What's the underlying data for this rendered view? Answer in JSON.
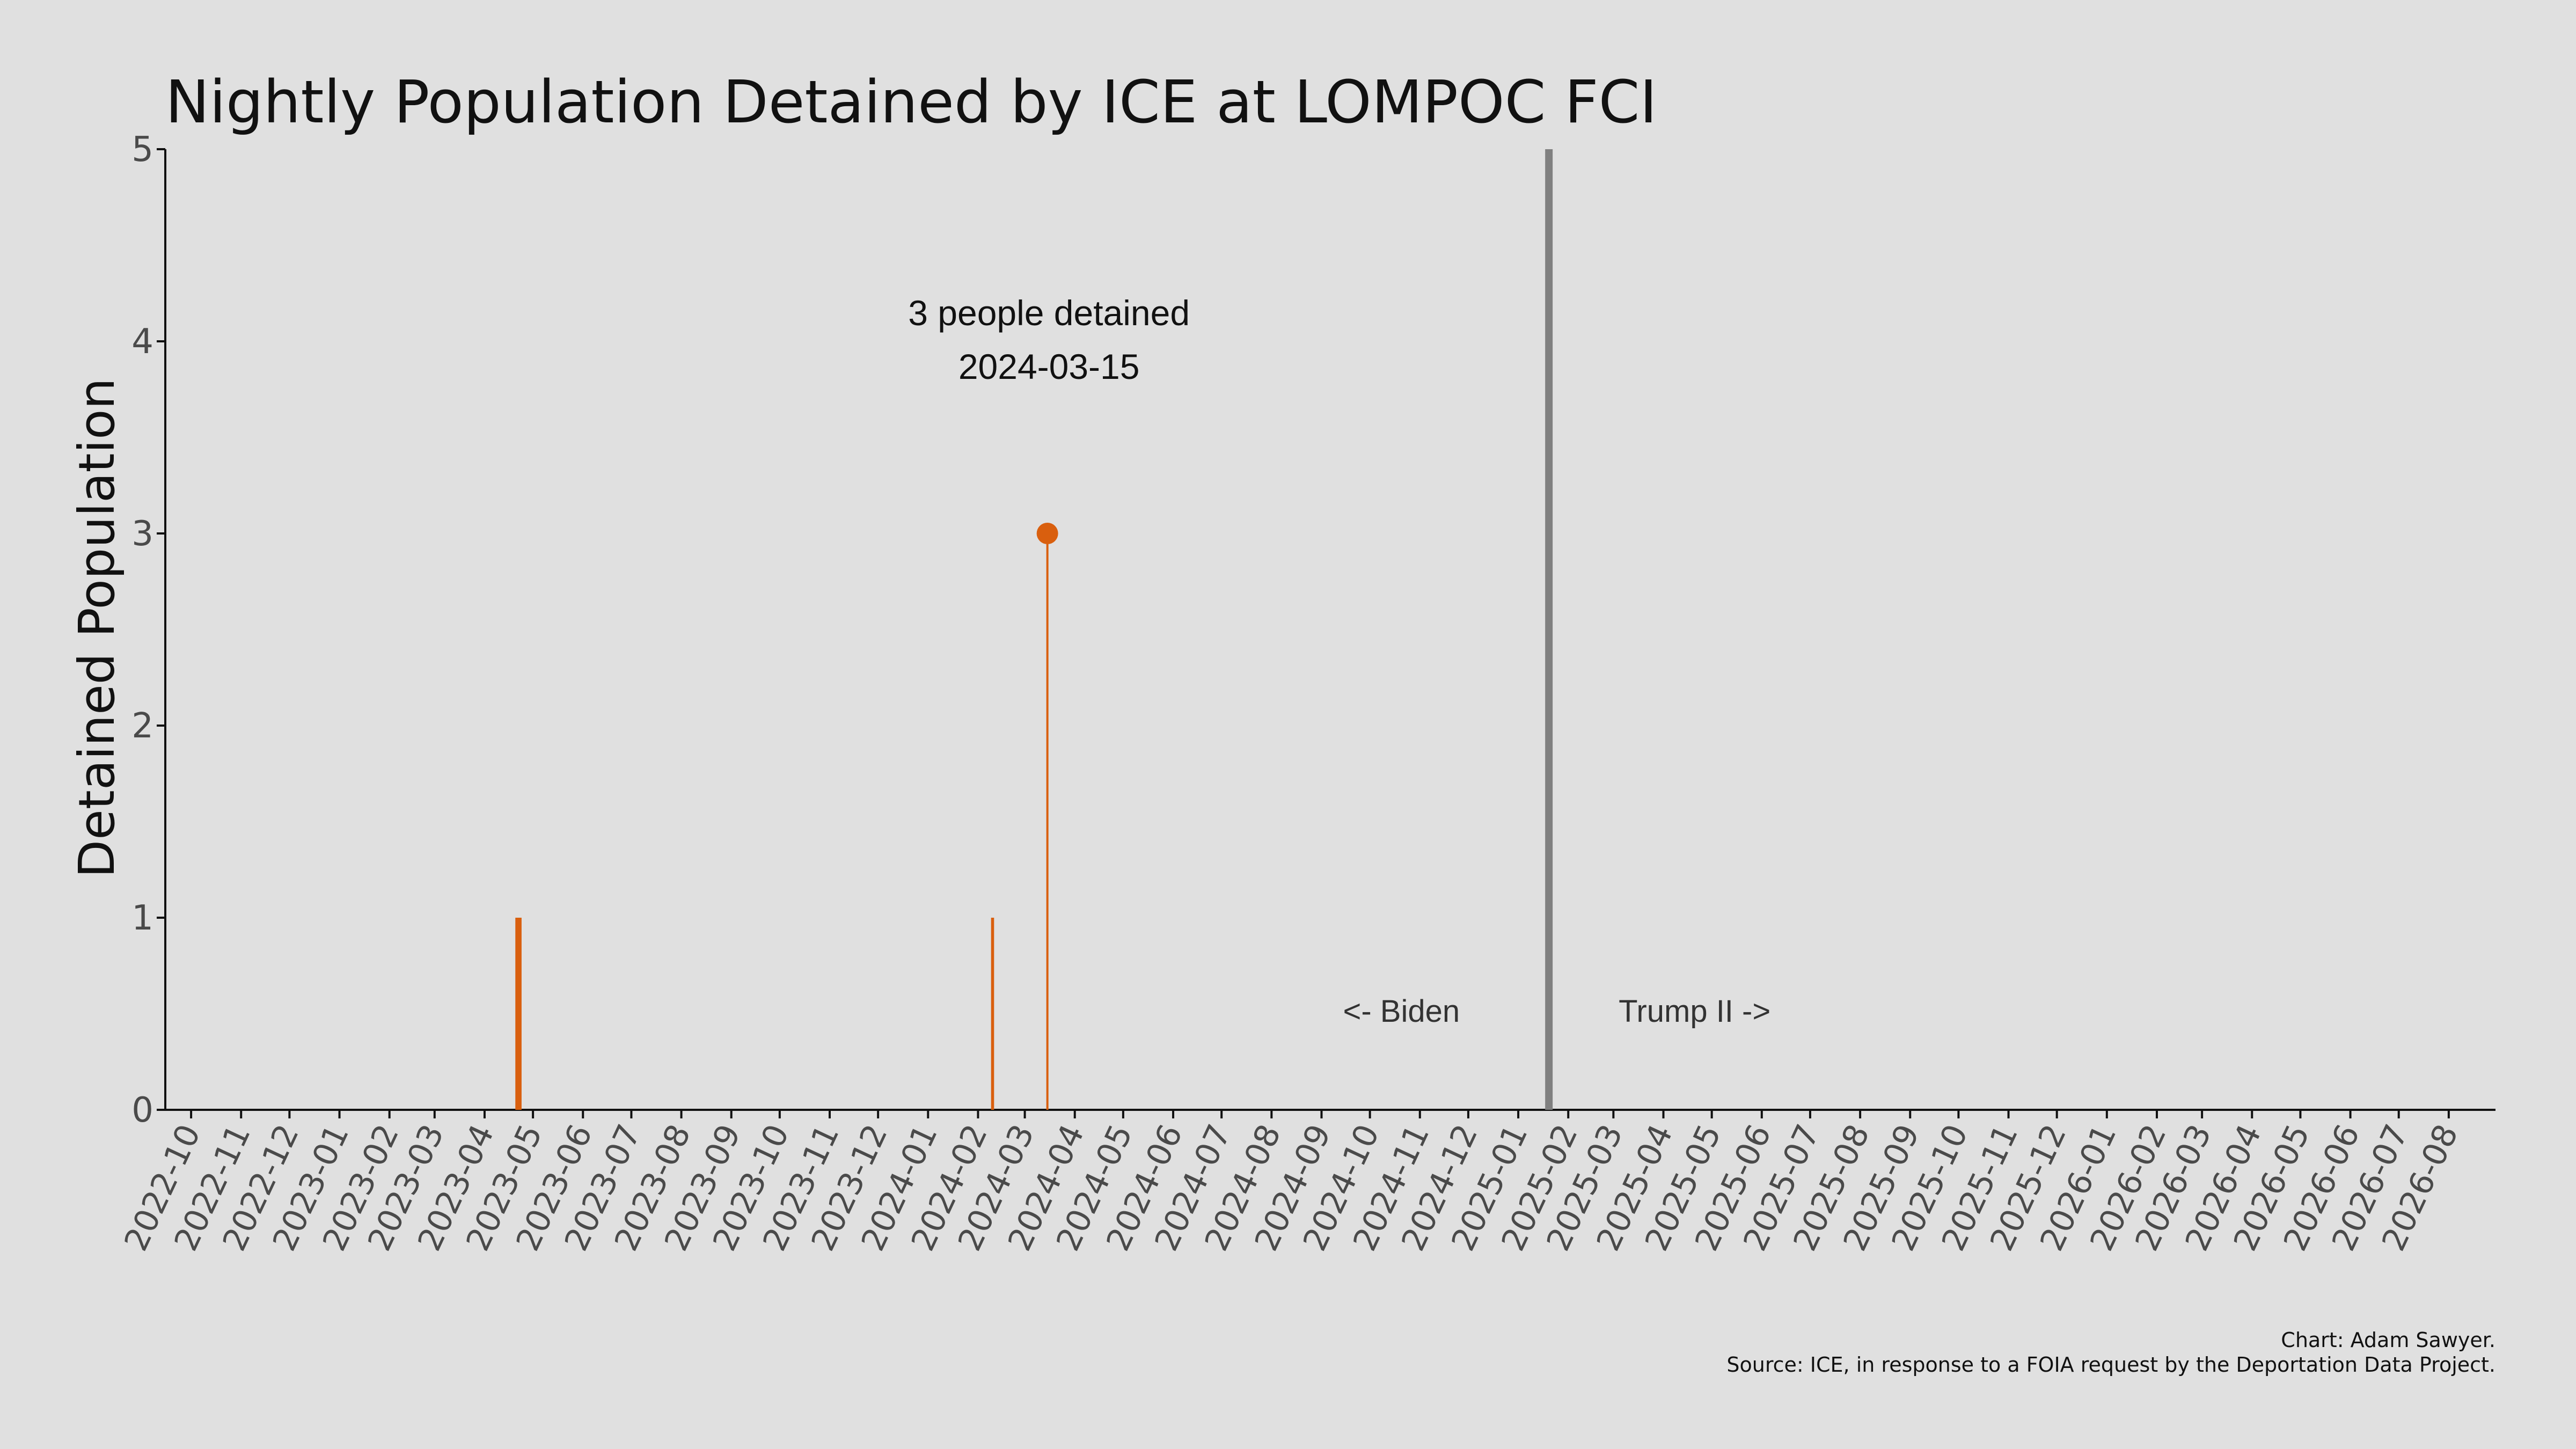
{
  "chart_data": {
    "type": "bar",
    "title": "Nightly Population Detained by ICE at LOMPOC FCI",
    "xlabel": "",
    "ylabel": "Detained Population",
    "ylim": [
      0,
      5
    ],
    "yticks": [
      0,
      1,
      2,
      3,
      4,
      5
    ],
    "xlim": [
      "2022-09-15",
      "2026-08-30"
    ],
    "xtick_labels": [
      "2022-10",
      "2022-11",
      "2022-12",
      "2023-01",
      "2023-02",
      "2023-03",
      "2023-04",
      "2023-05",
      "2023-06",
      "2023-07",
      "2023-08",
      "2023-09",
      "2023-10",
      "2023-11",
      "2023-12",
      "2024-01",
      "2024-02",
      "2024-03",
      "2024-04",
      "2024-05",
      "2024-06",
      "2024-07",
      "2024-08",
      "2024-09",
      "2024-10",
      "2024-11",
      "2024-12",
      "2025-01",
      "2025-02",
      "2025-03",
      "2025-04",
      "2025-05",
      "2025-06",
      "2025-07",
      "2025-08",
      "2025-09",
      "2025-10",
      "2025-11",
      "2025-12",
      "2026-01",
      "2026-02",
      "2026-03",
      "2026-04",
      "2026-05",
      "2026-06",
      "2026-07",
      "2026-08"
    ],
    "series": [
      {
        "color": "#d95f0e",
        "points": [
          {
            "date": "2023-04-21",
            "value": 1
          },
          {
            "date": "2023-04-22",
            "value": 1
          },
          {
            "date": "2023-04-23",
            "value": 1
          },
          {
            "date": "2024-02-10",
            "value": 1
          },
          {
            "date": "2024-03-15",
            "value": 3
          }
        ]
      }
    ],
    "highlight": {
      "date": "2024-03-15",
      "value": 3,
      "line1": "3 people detained",
      "line2": "2024-03-15"
    },
    "divider": {
      "date": "2025-01-20",
      "color": "#808080"
    },
    "era_labels": {
      "left": "<- Biden",
      "right": "Trump II ->"
    },
    "caption": [
      "Chart: Adam Sawyer.",
      "Source: ICE, in response to a FOIA request by the Deportation Data Project."
    ],
    "grid": false,
    "legend": "none"
  }
}
